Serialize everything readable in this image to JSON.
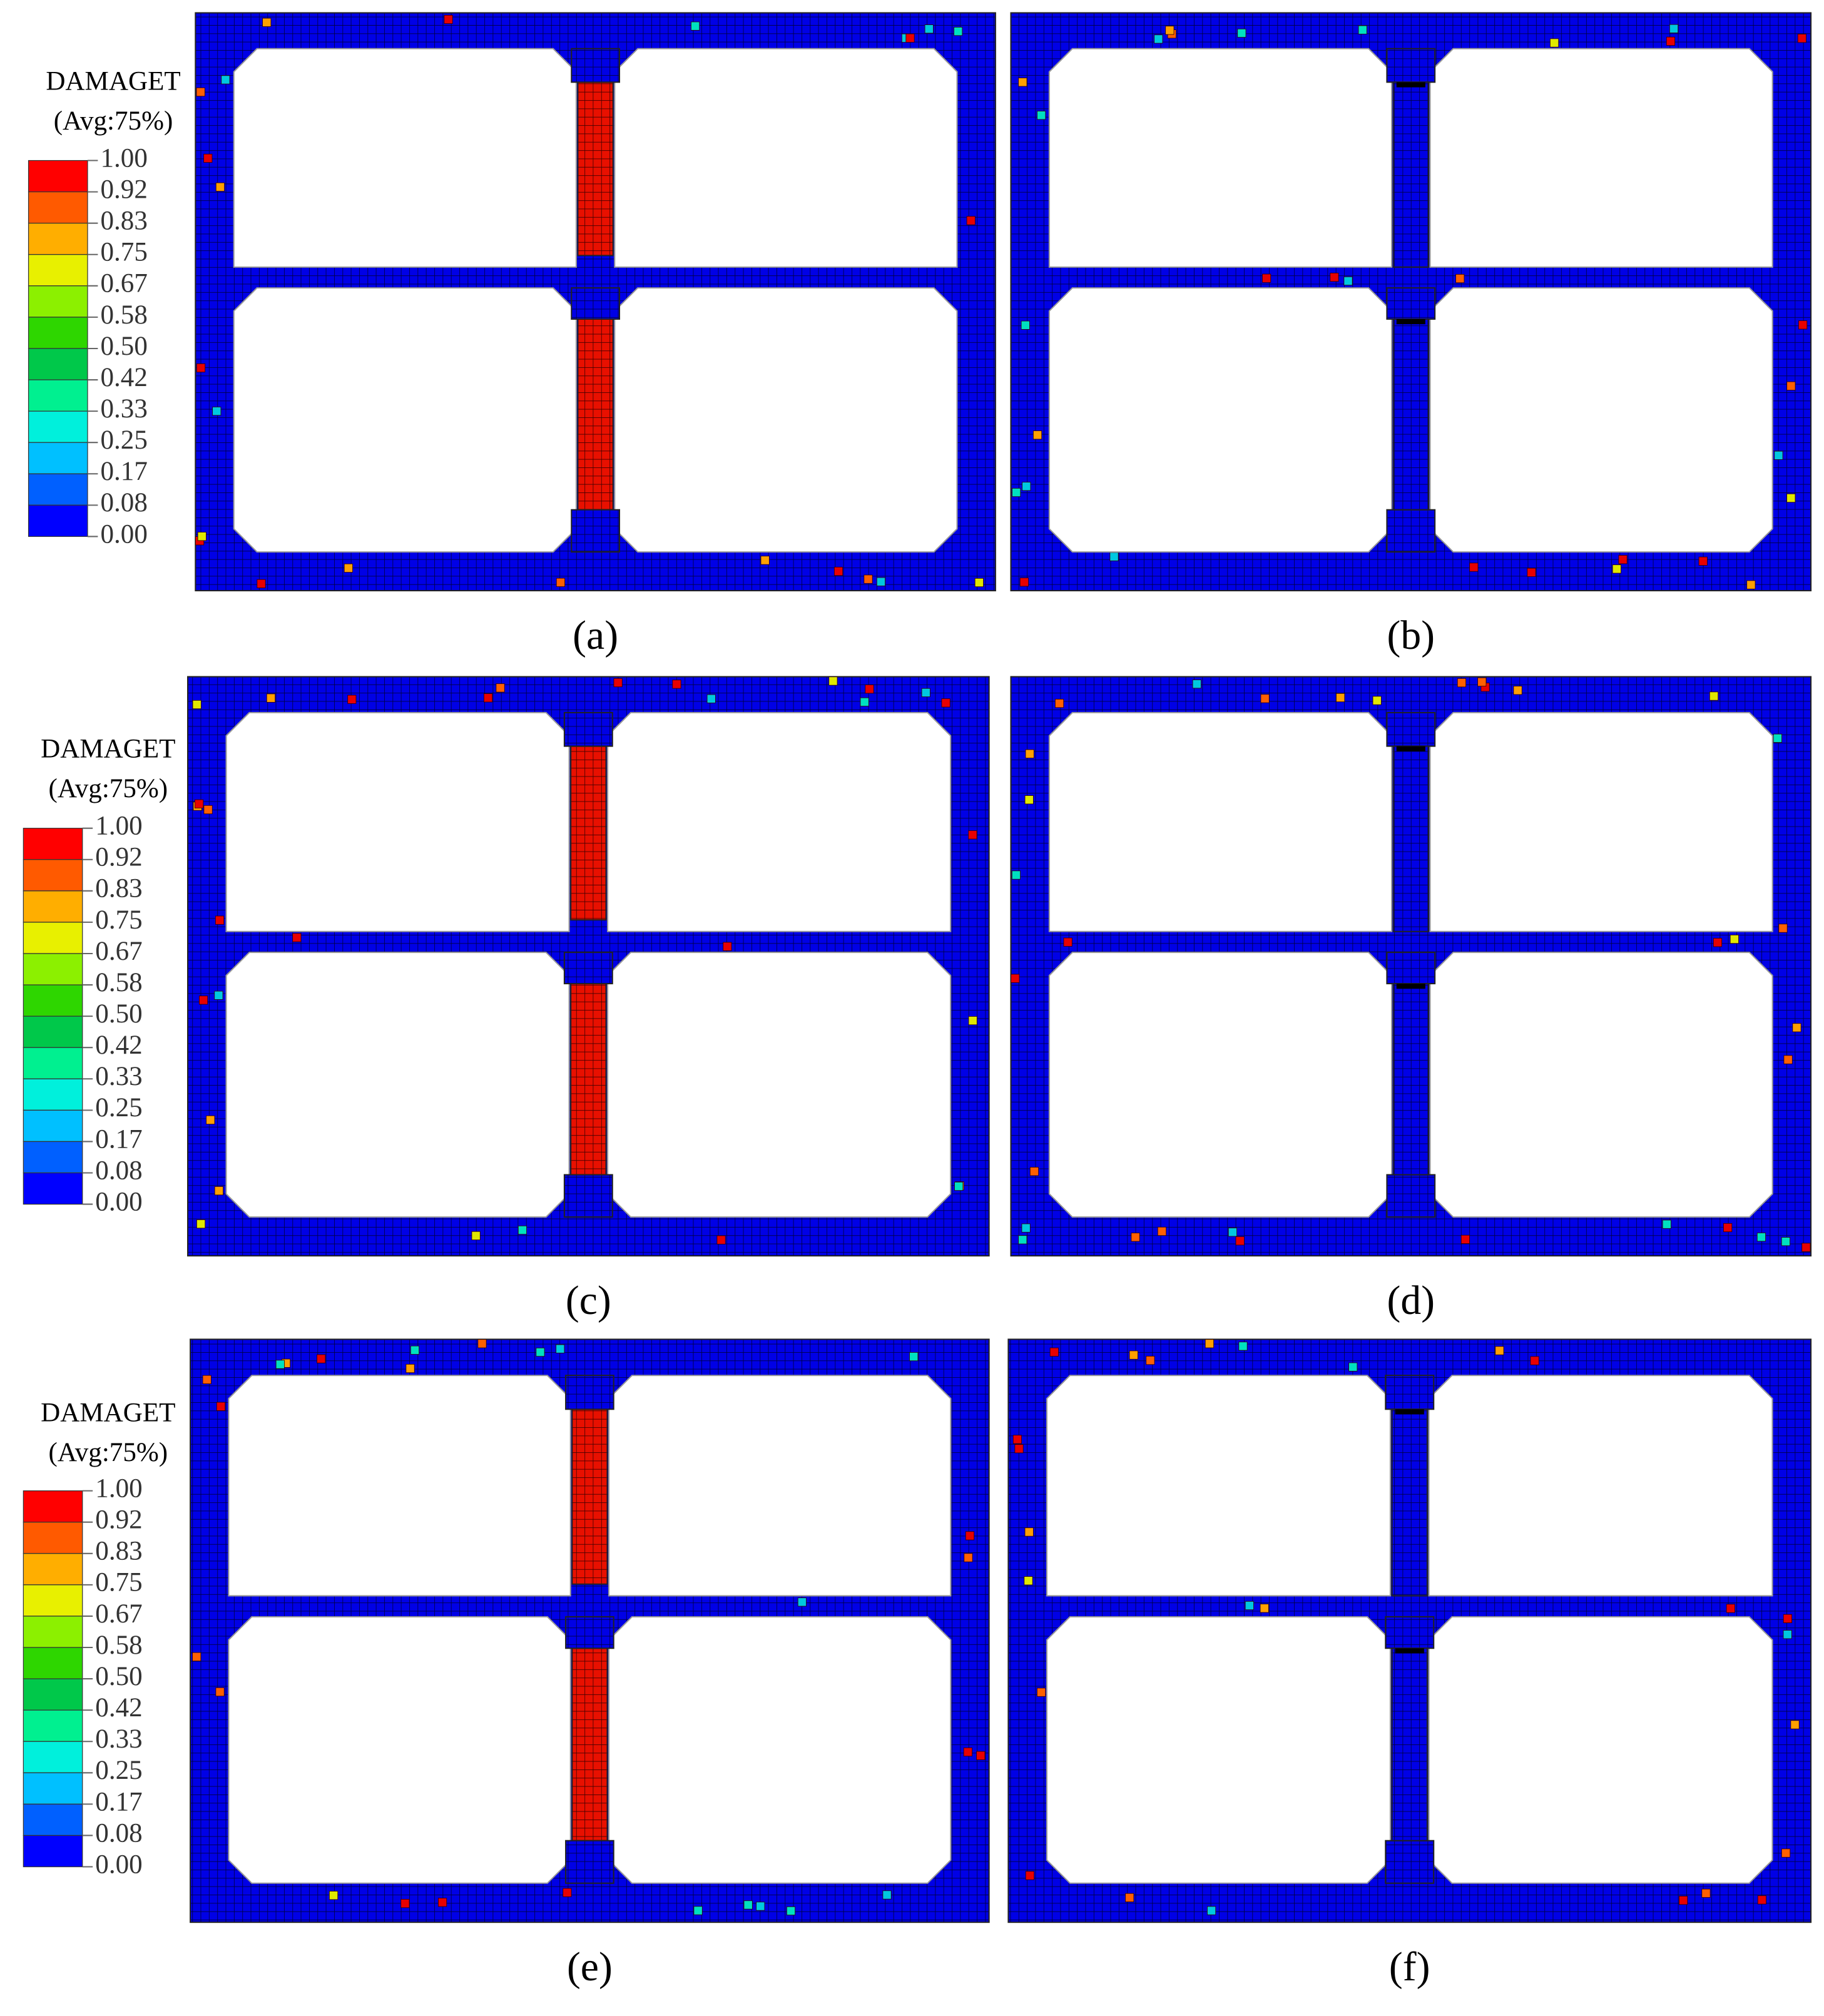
{
  "legends": [
    {
      "title": "DAMAGET",
      "subtitle": "(Avg:75%)",
      "levels": [
        "1.00",
        "0.92",
        "0.83",
        "0.75",
        "0.67",
        "0.58",
        "0.50",
        "0.42",
        "0.33",
        "0.25",
        "0.17",
        "0.08",
        "0.00"
      ]
    },
    {
      "title": "DAMAGET",
      "subtitle": "(Avg:75%)",
      "levels": [
        "1.00",
        "0.92",
        "0.83",
        "0.75",
        "0.67",
        "0.58",
        "0.50",
        "0.42",
        "0.33",
        "0.25",
        "0.17",
        "0.08",
        "0.00"
      ]
    },
    {
      "title": "DAMAGET",
      "subtitle": "(Avg:75%)",
      "levels": [
        "1.00",
        "0.92",
        "0.83",
        "0.75",
        "0.67",
        "0.58",
        "0.50",
        "0.42",
        "0.33",
        "0.25",
        "0.17",
        "0.08",
        "0.00"
      ]
    }
  ],
  "legend_colors": [
    "#ff0000",
    "#ff5a00",
    "#ffae00",
    "#e8f000",
    "#8cf000",
    "#2ed600",
    "#00c84a",
    "#00f090",
    "#00f0dc",
    "#00c0ff",
    "#0060ff",
    "#0000ff"
  ],
  "panels": [
    {
      "label": "(a)",
      "column_damaged": true
    },
    {
      "label": "(b)",
      "column_damaged": false
    },
    {
      "label": "(c)",
      "column_damaged": true
    },
    {
      "label": "(d)",
      "column_damaged": false
    },
    {
      "label": "(e)",
      "column_damaged": true
    },
    {
      "label": "(f)",
      "column_damaged": false
    }
  ]
}
